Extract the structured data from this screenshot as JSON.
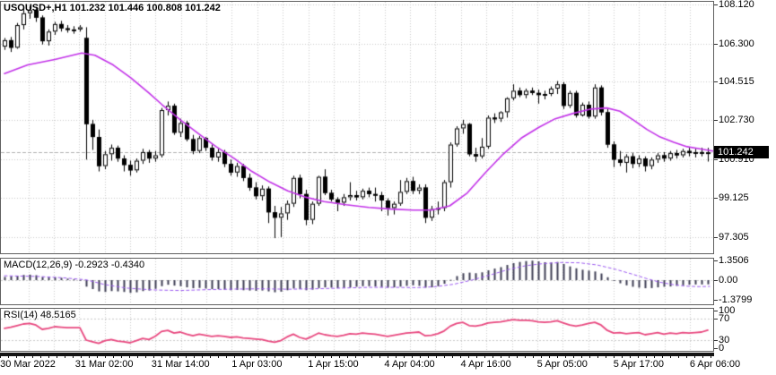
{
  "window_title": "USOUSD+,H1 101.232 101.446 100.808 101.242",
  "price_panel": {
    "title": "USOUSD+,H1  101.232 101.446 100.808 101.242",
    "symbol": "USOUSD+",
    "timeframe": "H1",
    "current_price_label": "101.242",
    "y_tick_labels": [
      "108.120",
      "106.300",
      "104.515",
      "102.730",
      "100.910",
      "99.125",
      "97.305"
    ]
  },
  "macd_panel": {
    "label": "MACD(12,26,9) -0.2923 -0.4340",
    "y_tick_labels": [
      "1.3506",
      "0.00",
      "-1.3799"
    ]
  },
  "rsi_panel": {
    "label": "RSI(14) 48.5165",
    "y_tick_labels": [
      "100",
      "70",
      "30",
      "0"
    ]
  },
  "x_axis": {
    "labels": [
      "30 Mar 2022",
      "31 Mar 02:00",
      "31 Mar 14:00",
      "1 Apr 03:00",
      "1 Apr 15:00",
      "4 Apr 04:00",
      "4 Apr 16:00",
      "5 Apr 05:00",
      "5 Apr 17:00",
      "6 Apr 06:00"
    ]
  },
  "colors": {
    "bull_body": "#ffffff",
    "bear_body": "#000000",
    "candle_outline": "#000000",
    "ma_line": "#c232e8",
    "macd_histogram": "#3f3f55",
    "macd_signal": "#9b59f0",
    "rsi_line": "#e8487f",
    "grid": "#c9c9c9",
    "bid_line": "#b0b0b0",
    "badge_bg": "#000000",
    "badge_fg": "#ffffff",
    "panel_border": "#5f5f5f"
  },
  "chart_data": [
    {
      "type": "candlestick",
      "title": "USOUSD+ H1",
      "legend": [
        "price candles",
        "moving average"
      ],
      "y_ticks": [
        108.12,
        106.3,
        104.515,
        102.73,
        100.91,
        99.125,
        97.305
      ],
      "ylim": [
        96.55,
        108.32
      ],
      "current_price": 101.242,
      "current_bar": {
        "open": 101.232,
        "high": 101.446,
        "low": 100.808,
        "close": 101.242
      },
      "candles": [
        [
          106.15,
          106.55,
          106.0,
          106.45
        ],
        [
          106.45,
          106.6,
          105.9,
          106.1
        ],
        [
          106.1,
          107.25,
          106.05,
          107.15
        ],
        [
          107.15,
          107.95,
          106.95,
          107.7
        ],
        [
          107.7,
          108.05,
          107.45,
          107.85
        ],
        [
          107.85,
          108.0,
          107.3,
          107.5
        ],
        [
          107.5,
          107.6,
          106.25,
          106.4
        ],
        [
          106.4,
          106.95,
          106.2,
          106.85
        ],
        [
          106.85,
          107.3,
          106.7,
          107.2
        ],
        [
          107.2,
          107.35,
          106.85,
          107.0
        ],
        [
          107.0,
          107.15,
          106.8,
          106.95
        ],
        [
          106.95,
          107.1,
          106.75,
          106.95
        ],
        [
          106.95,
          107.15,
          106.85,
          107.05
        ],
        [
          106.55,
          107.05,
          100.9,
          102.55
        ],
        [
          102.55,
          102.75,
          101.35,
          101.95
        ],
        [
          101.95,
          102.3,
          100.35,
          100.6
        ],
        [
          100.6,
          101.3,
          100.45,
          101.15
        ],
        [
          101.15,
          101.6,
          100.85,
          101.45
        ],
        [
          101.45,
          101.55,
          100.8,
          100.95
        ],
        [
          100.95,
          101.1,
          100.35,
          100.65
        ],
        [
          100.65,
          100.85,
          100.15,
          100.4
        ],
        [
          100.4,
          100.95,
          100.3,
          100.85
        ],
        [
          100.85,
          101.4,
          100.7,
          101.25
        ],
        [
          101.25,
          101.35,
          100.75,
          100.95
        ],
        [
          100.95,
          101.3,
          100.8,
          101.1
        ],
        [
          101.1,
          103.3,
          101.0,
          103.2
        ],
        [
          103.2,
          103.6,
          102.95,
          103.4
        ],
        [
          103.4,
          103.5,
          102.05,
          102.15
        ],
        [
          102.15,
          102.8,
          101.95,
          102.6
        ],
        [
          102.6,
          102.7,
          101.75,
          101.85
        ],
        [
          101.85,
          102.05,
          101.15,
          101.3
        ],
        [
          101.3,
          102.0,
          101.2,
          101.9
        ],
        [
          101.9,
          101.95,
          101.3,
          101.45
        ],
        [
          101.45,
          101.6,
          100.85,
          101.0
        ],
        [
          101.0,
          101.4,
          100.8,
          101.25
        ],
        [
          101.25,
          101.35,
          100.55,
          100.7
        ],
        [
          100.7,
          100.9,
          100.15,
          100.3
        ],
        [
          100.3,
          100.75,
          100.1,
          100.6
        ],
        [
          100.6,
          100.7,
          99.9,
          100.05
        ],
        [
          100.05,
          100.25,
          99.45,
          99.6
        ],
        [
          99.6,
          99.85,
          99.05,
          99.2
        ],
        [
          99.2,
          99.7,
          99.0,
          99.55
        ],
        [
          99.55,
          99.65,
          97.95,
          98.45
        ],
        [
          98.45,
          98.75,
          97.25,
          98.2
        ],
        [
          98.2,
          98.7,
          97.3,
          98.4
        ],
        [
          98.4,
          99.0,
          98.1,
          98.85
        ],
        [
          98.85,
          100.15,
          98.7,
          100.05
        ],
        [
          100.05,
          100.2,
          99.1,
          99.3
        ],
        [
          99.3,
          99.5,
          97.85,
          98.1
        ],
        [
          98.1,
          98.95,
          97.9,
          98.85
        ],
        [
          98.85,
          100.15,
          98.75,
          100.1
        ],
        [
          100.1,
          100.45,
          99.25,
          99.35
        ],
        [
          99.35,
          99.5,
          98.95,
          99.05
        ],
        [
          99.05,
          99.15,
          98.5,
          98.9
        ],
        [
          98.9,
          99.3,
          98.75,
          99.15
        ],
        [
          99.15,
          99.85,
          99.0,
          99.25
        ],
        [
          99.25,
          99.45,
          99.0,
          99.15
        ],
        [
          99.15,
          99.55,
          99.05,
          99.45
        ],
        [
          99.45,
          99.6,
          99.15,
          99.3
        ],
        [
          99.3,
          99.6,
          98.95,
          99.25
        ],
        [
          99.25,
          99.4,
          98.5,
          99.0
        ],
        [
          99.0,
          99.1,
          98.3,
          98.65
        ],
        [
          98.65,
          98.95,
          98.35,
          98.85
        ],
        [
          98.85,
          99.95,
          98.75,
          99.4
        ],
        [
          99.4,
          100.05,
          99.3,
          99.9
        ],
        [
          99.9,
          100.1,
          99.3,
          99.45
        ],
        [
          99.45,
          99.75,
          99.3,
          99.6
        ],
        [
          99.6,
          99.75,
          97.95,
          98.2
        ],
        [
          98.2,
          98.75,
          98.05,
          98.6
        ],
        [
          98.6,
          98.95,
          98.35,
          98.65
        ],
        [
          98.65,
          99.95,
          98.5,
          99.85
        ],
        [
          99.85,
          101.7,
          99.6,
          101.6
        ],
        [
          101.6,
          102.45,
          101.5,
          102.35
        ],
        [
          102.35,
          102.75,
          102.1,
          102.55
        ],
        [
          102.55,
          102.6,
          101.05,
          101.15
        ],
        [
          101.15,
          101.45,
          100.8,
          101.05
        ],
        [
          101.05,
          101.9,
          100.95,
          101.5
        ],
        [
          101.5,
          102.95,
          101.4,
          102.85
        ],
        [
          102.85,
          103.05,
          102.6,
          102.8
        ],
        [
          102.8,
          103.15,
          102.65,
          103.1
        ],
        [
          103.1,
          103.8,
          102.85,
          103.75
        ],
        [
          103.75,
          104.4,
          103.65,
          104.1
        ],
        [
          104.1,
          104.25,
          103.8,
          103.9
        ],
        [
          103.9,
          104.2,
          103.75,
          104.1
        ],
        [
          104.1,
          104.25,
          103.9,
          104.0
        ],
        [
          104.0,
          104.15,
          103.5,
          103.9
        ],
        [
          103.9,
          104.1,
          103.7,
          103.95
        ],
        [
          103.95,
          104.3,
          103.85,
          104.2
        ],
        [
          104.2,
          104.55,
          103.95,
          104.4
        ],
        [
          104.4,
          104.5,
          103.25,
          103.4
        ],
        [
          103.4,
          104.1,
          103.3,
          104.0
        ],
        [
          104.0,
          104.1,
          102.85,
          102.95
        ],
        [
          102.95,
          103.55,
          102.9,
          103.45
        ],
        [
          103.45,
          103.6,
          102.8,
          102.9
        ],
        [
          102.9,
          104.4,
          102.8,
          104.25
        ],
        [
          104.25,
          104.35,
          102.95,
          103.1
        ],
        [
          103.1,
          103.25,
          101.45,
          101.6
        ],
        [
          101.6,
          101.75,
          100.55,
          100.9
        ],
        [
          100.9,
          101.3,
          100.6,
          100.75
        ],
        [
          100.75,
          101.15,
          100.3,
          101.05
        ],
        [
          101.05,
          101.2,
          100.5,
          100.7
        ],
        [
          100.7,
          101.1,
          100.55,
          100.95
        ],
        [
          100.95,
          101.05,
          100.35,
          100.6
        ],
        [
          100.6,
          101.0,
          100.45,
          100.9
        ],
        [
          100.9,
          101.2,
          100.75,
          101.1
        ],
        [
          101.1,
          101.25,
          100.8,
          100.95
        ],
        [
          100.95,
          101.3,
          100.85,
          101.2
        ],
        [
          101.2,
          101.35,
          100.95,
          101.1
        ],
        [
          101.1,
          101.4,
          101.0,
          101.3
        ],
        [
          101.3,
          101.45,
          101.05,
          101.2
        ],
        [
          101.2,
          101.4,
          101.0,
          101.25
        ],
        [
          101.25,
          101.45,
          101.05,
          101.2
        ],
        [
          101.232,
          101.446,
          100.808,
          101.242
        ]
      ],
      "ma_points": [
        [
          0,
          104.9
        ],
        [
          3.7,
          105.3
        ],
        [
          8,
          105.55
        ],
        [
          12.3,
          105.85
        ],
        [
          14.4,
          105.75
        ],
        [
          17.3,
          105.3
        ],
        [
          20.1,
          104.7
        ],
        [
          23,
          104.0
        ],
        [
          25.1,
          103.45
        ],
        [
          28,
          102.75
        ],
        [
          30.9,
          102.1
        ],
        [
          33.7,
          101.5
        ],
        [
          36.6,
          100.95
        ],
        [
          39.4,
          100.35
        ],
        [
          42.3,
          99.85
        ],
        [
          45.1,
          99.45
        ],
        [
          48,
          99.15
        ],
        [
          50.9,
          98.95
        ],
        [
          54.4,
          98.8
        ],
        [
          58,
          98.68
        ],
        [
          61.6,
          98.6
        ],
        [
          65.1,
          98.55
        ],
        [
          68,
          98.55
        ],
        [
          70.9,
          98.75
        ],
        [
          73.7,
          99.35
        ],
        [
          76.6,
          100.3
        ],
        [
          79.4,
          101.15
        ],
        [
          82.3,
          101.9
        ],
        [
          85.1,
          102.4
        ],
        [
          87.7,
          102.8
        ],
        [
          90.6,
          103.05
        ],
        [
          93.4,
          103.25
        ],
        [
          95.9,
          103.3
        ],
        [
          98,
          103.15
        ],
        [
          100.1,
          102.75
        ],
        [
          102.3,
          102.3
        ],
        [
          104.4,
          101.95
        ],
        [
          106.6,
          101.7
        ],
        [
          108.7,
          101.5
        ],
        [
          111.1,
          101.38
        ],
        [
          112.8,
          101.3
        ]
      ]
    },
    {
      "type": "macd",
      "title": "MACD(12,26,9)",
      "values_label": {
        "macd": -0.2923,
        "signal": -0.434
      },
      "y_ticks": [
        1.3506,
        0.0,
        -1.3799
      ],
      "histogram": [
        0.22,
        0.26,
        0.3,
        0.36,
        0.38,
        0.34,
        0.22,
        0.18,
        0.2,
        0.16,
        0.1,
        0.05,
        0.02,
        -0.45,
        -0.62,
        -0.78,
        -0.82,
        -0.76,
        -0.78,
        -0.82,
        -0.88,
        -0.84,
        -0.76,
        -0.72,
        -0.6,
        -0.42,
        -0.32,
        -0.38,
        -0.42,
        -0.5,
        -0.56,
        -0.54,
        -0.58,
        -0.62,
        -0.62,
        -0.66,
        -0.7,
        -0.68,
        -0.7,
        -0.72,
        -0.74,
        -0.72,
        -0.78,
        -0.84,
        -0.8,
        -0.7,
        -0.58,
        -0.62,
        -0.7,
        -0.66,
        -0.55,
        -0.5,
        -0.52,
        -0.56,
        -0.54,
        -0.5,
        -0.46,
        -0.42,
        -0.42,
        -0.44,
        -0.48,
        -0.52,
        -0.5,
        -0.45,
        -0.4,
        -0.36,
        -0.4,
        -0.52,
        -0.5,
        -0.42,
        -0.25,
        0.02,
        0.28,
        0.48,
        0.52,
        0.48,
        0.54,
        0.68,
        0.8,
        0.9,
        1.05,
        1.18,
        1.26,
        1.32,
        1.35,
        1.3,
        1.24,
        1.22,
        1.26,
        1.12,
        0.95,
        0.82,
        0.72,
        0.66,
        0.6,
        0.46,
        0.2,
        -0.06,
        -0.22,
        -0.36,
        -0.46,
        -0.52,
        -0.56,
        -0.55,
        -0.5,
        -0.46,
        -0.44,
        -0.4,
        -0.36,
        -0.32,
        -0.3,
        -0.3,
        -0.29
      ],
      "signal_points": [
        [
          0,
          0.3
        ],
        [
          5.1,
          0.26
        ],
        [
          9.4,
          0.16
        ],
        [
          13,
          0.02
        ],
        [
          15.9,
          -0.3
        ],
        [
          19.4,
          -0.55
        ],
        [
          23.7,
          -0.68
        ],
        [
          28,
          -0.72
        ],
        [
          32.3,
          -0.66
        ],
        [
          36.6,
          -0.62
        ],
        [
          40.9,
          -0.6
        ],
        [
          45.1,
          -0.63
        ],
        [
          49.4,
          -0.6
        ],
        [
          53.7,
          -0.55
        ],
        [
          58,
          -0.5
        ],
        [
          62.3,
          -0.5
        ],
        [
          65.9,
          -0.52
        ],
        [
          68.7,
          -0.45
        ],
        [
          71.6,
          -0.28
        ],
        [
          74.4,
          0.0
        ],
        [
          77.3,
          0.35
        ],
        [
          80.1,
          0.72
        ],
        [
          83,
          1.0
        ],
        [
          85.9,
          1.15
        ],
        [
          88.7,
          1.22
        ],
        [
          91.6,
          1.2
        ],
        [
          94.4,
          1.05
        ],
        [
          97.3,
          0.75
        ],
        [
          100.1,
          0.4
        ],
        [
          102.3,
          0.1
        ],
        [
          104.4,
          -0.15
        ],
        [
          106.6,
          -0.32
        ],
        [
          108.7,
          -0.42
        ],
        [
          110.6,
          -0.45
        ],
        [
          112.3,
          -0.434
        ]
      ]
    },
    {
      "type": "rsi",
      "title": "RSI(14)",
      "current": 48.5165,
      "levels": [
        70,
        30
      ],
      "y_ticks": [
        100,
        70,
        30,
        0
      ],
      "values": [
        52,
        54,
        57,
        60,
        61,
        58,
        50,
        52,
        55,
        54,
        53,
        53,
        53,
        30,
        27,
        24,
        29,
        31,
        28,
        27,
        25,
        29,
        33,
        31,
        37,
        46,
        48,
        43,
        45,
        41,
        38,
        41,
        39,
        37,
        38,
        37,
        35,
        36,
        34,
        33,
        32,
        31,
        28,
        26,
        29,
        36,
        41,
        35,
        32,
        37,
        43,
        40,
        38,
        37,
        39,
        42,
        41,
        43,
        42,
        41,
        39,
        37,
        39,
        41,
        43,
        44,
        45,
        38,
        39,
        42,
        47,
        56,
        61,
        63,
        57,
        56,
        58,
        62,
        63,
        64,
        66,
        68,
        67,
        67,
        66,
        64,
        63,
        64,
        66,
        62,
        58,
        56,
        58,
        61,
        63,
        58,
        48,
        43,
        44,
        42,
        43,
        44,
        40,
        42,
        44,
        41,
        43,
        42,
        44,
        43,
        44,
        45,
        48.5
      ]
    }
  ]
}
